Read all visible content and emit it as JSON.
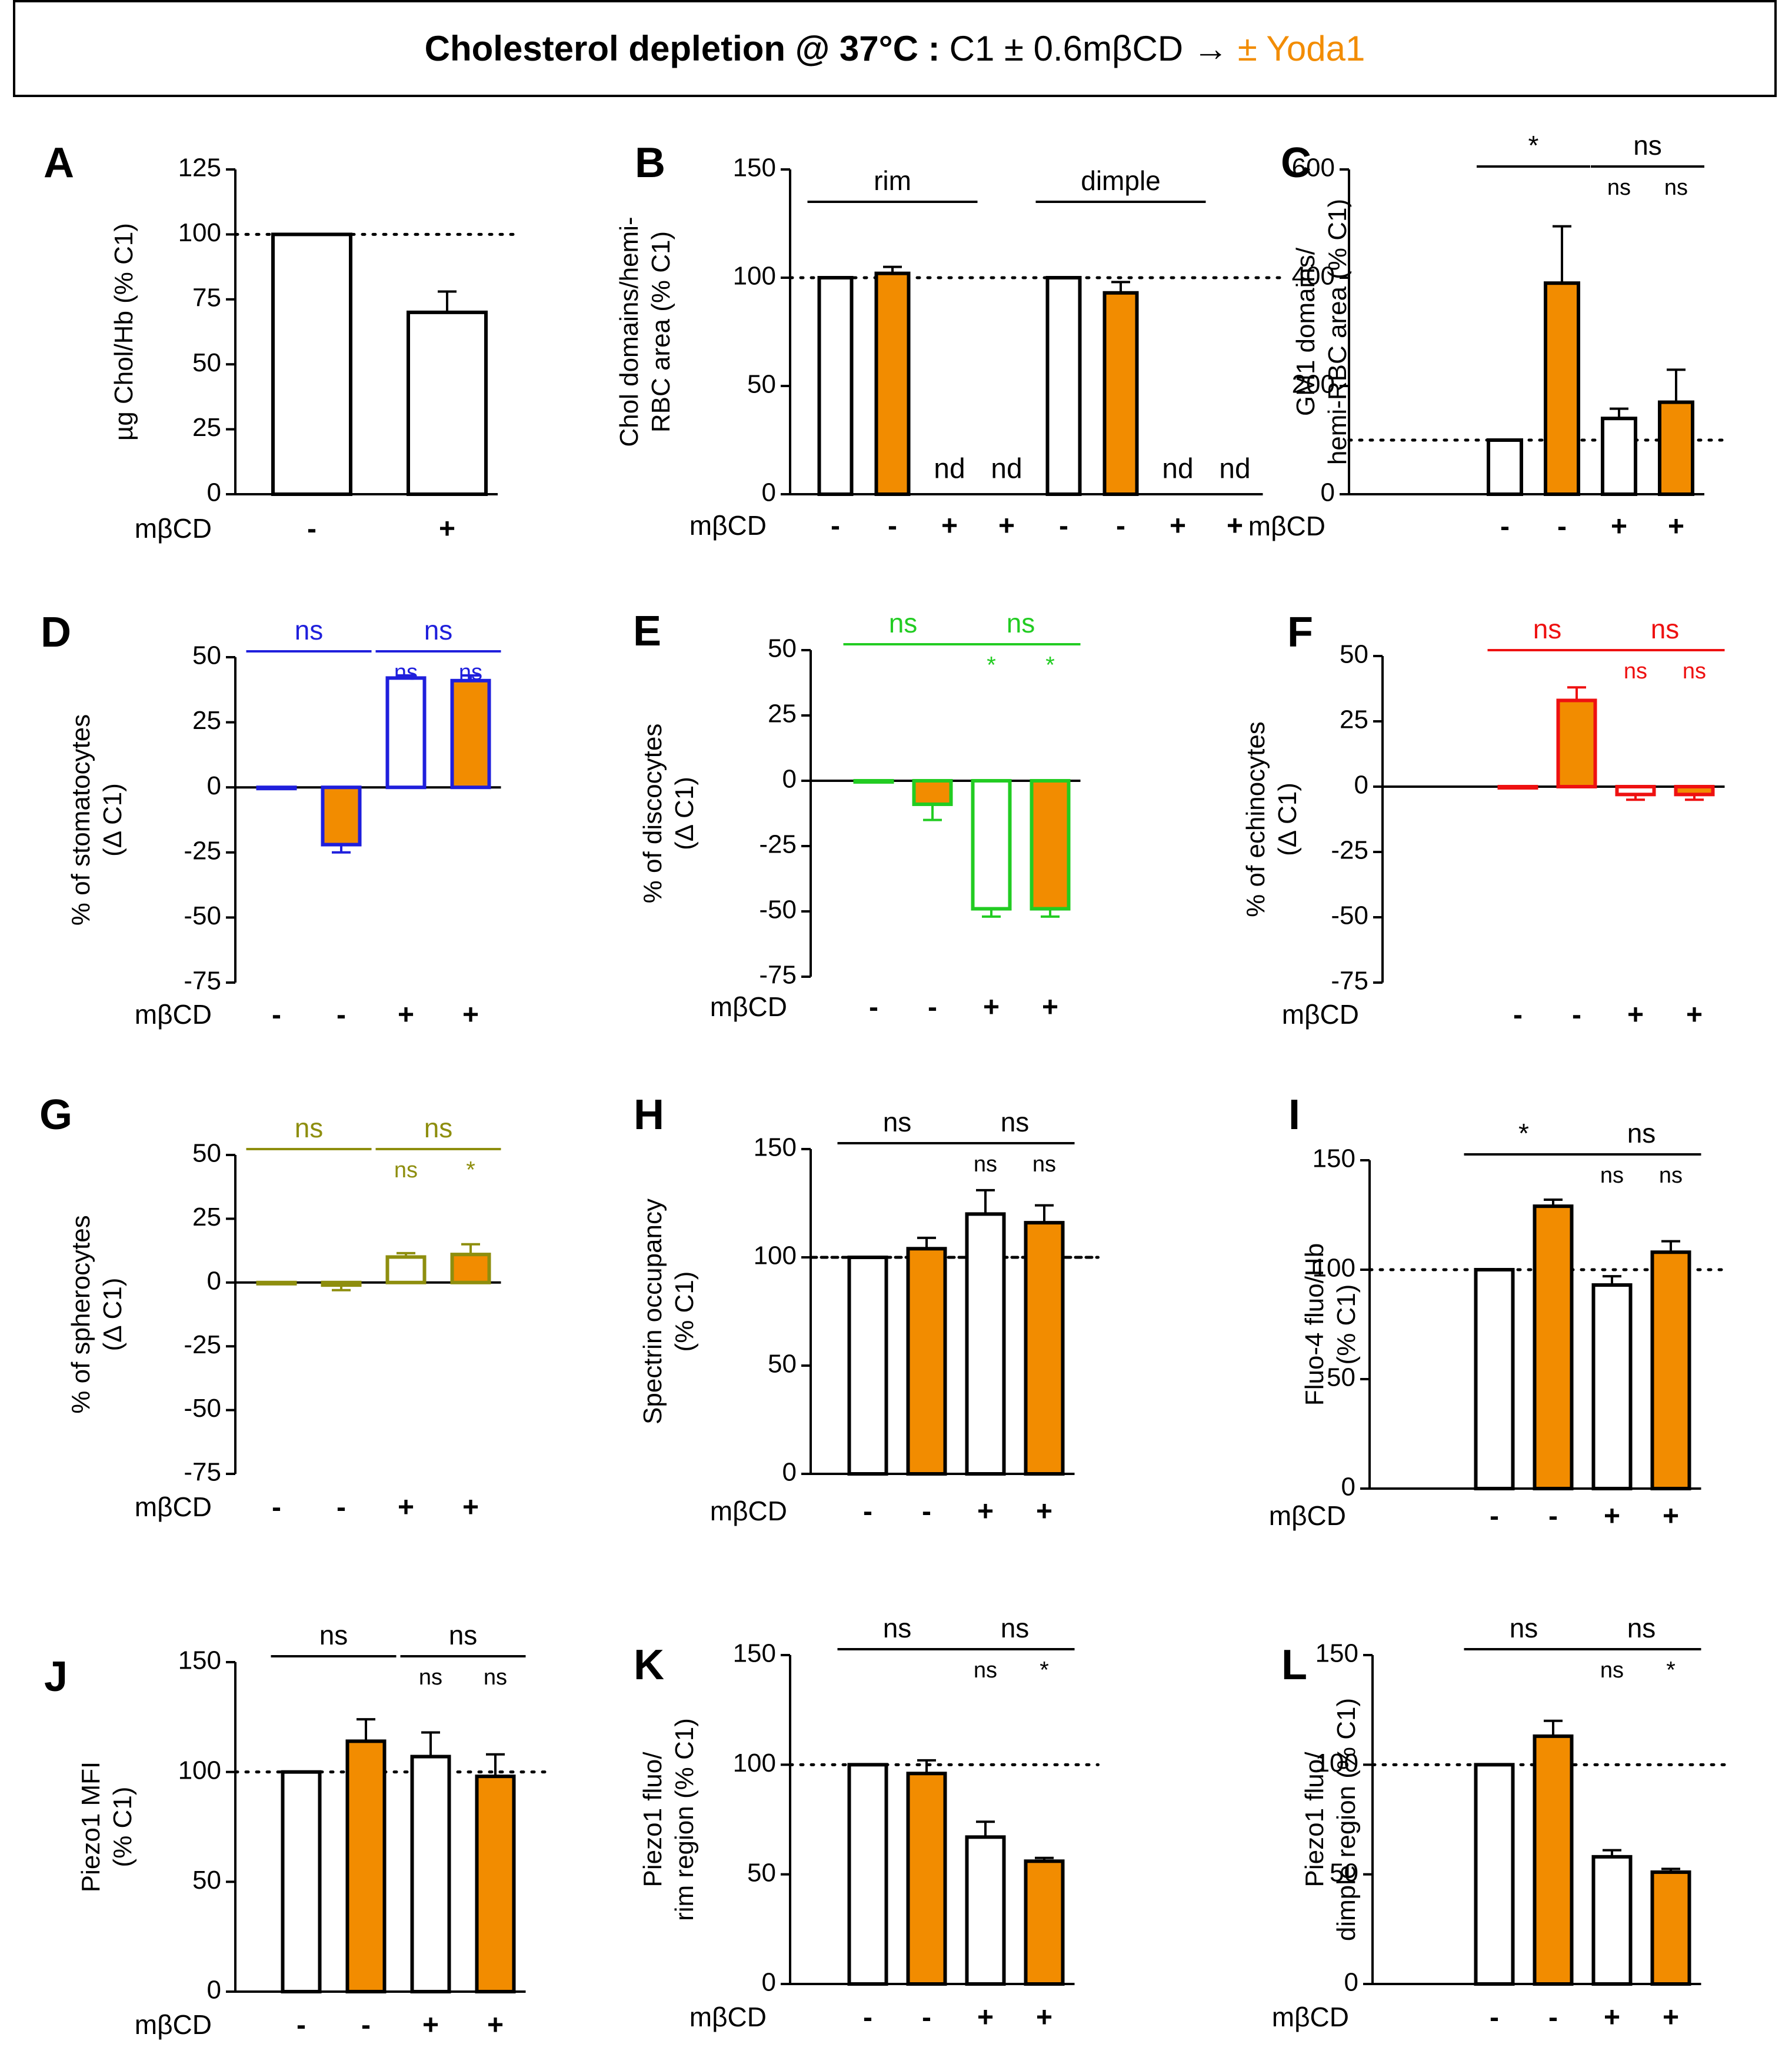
{
  "header": {
    "bold": "Cholesterol depletion @ 37°C :",
    "plain": "C1 ± 0.6mβCD →",
    "yoda": "± Yoda1",
    "yoda_color": "#f28c00"
  },
  "colors": {
    "orange": "#f28c00",
    "blue": "#1f1fdc",
    "green": "#22cc22",
    "red": "#ee1111",
    "olive": "#8e8e0e",
    "black": "#000000"
  },
  "treatment_label": "mβCD",
  "chart_data": [
    {
      "panel": "A",
      "type": "bar",
      "ylabel": "µg Chol/Hb (% C1)",
      "ylim": [
        0,
        125
      ],
      "ticks": [
        0,
        25,
        50,
        75,
        100,
        125
      ],
      "refline": 100,
      "categories": [
        "-",
        "+"
      ],
      "values": [
        100,
        70
      ],
      "errors": [
        0,
        8
      ],
      "fills": [
        "white",
        "white"
      ],
      "strokes": [
        "black",
        "black"
      ],
      "brackets": []
    },
    {
      "panel": "B",
      "type": "bar",
      "ylabel": "Chol domains/hemi-RBC area (% C1)",
      "ylabel_lines": [
        "Chol domains/hemi-",
        "RBC area (% C1)"
      ],
      "ylim": [
        0,
        150
      ],
      "ticks": [
        0,
        50,
        100,
        150
      ],
      "refline": 100,
      "categories": [
        "-",
        "-",
        "+",
        "+",
        "-",
        "-",
        "+",
        "+"
      ],
      "values": [
        100,
        102,
        null,
        null,
        100,
        93,
        null,
        null
      ],
      "errors": [
        0,
        3,
        0,
        0,
        0,
        5,
        0,
        0
      ],
      "fills": [
        "white",
        "orange",
        "white",
        "orange",
        "white",
        "orange",
        "white",
        "orange"
      ],
      "strokes": [
        "black",
        "black",
        "black",
        "black",
        "black",
        "black",
        "black",
        "black"
      ],
      "value_labels": [
        "",
        "",
        "nd",
        "nd",
        "",
        "",
        "nd",
        "nd"
      ],
      "brackets": [
        {
          "from": 0,
          "to": 2,
          "label": "rim"
        },
        {
          "from": 4,
          "to": 6,
          "label": "dimple"
        }
      ]
    },
    {
      "panel": "C",
      "type": "bar",
      "ylabel": "GM1 domains/ hemi-RBC area (% C1)",
      "ylabel_lines": [
        "GM1 domains/",
        "hemi-RBC area (% C1)"
      ],
      "ylim": [
        0,
        600
      ],
      "ticks": [
        0,
        200,
        400,
        600
      ],
      "refline": 100,
      "categories": [
        "-",
        "-",
        "+",
        "+"
      ],
      "values": [
        100,
        390,
        140,
        170
      ],
      "errors": [
        0,
        105,
        18,
        60
      ],
      "fills": [
        "white",
        "orange",
        "white",
        "orange"
      ],
      "strokes": [
        "black",
        "black",
        "black",
        "black"
      ],
      "brackets": [
        {
          "from": 0,
          "to": 1,
          "label": "*"
        },
        {
          "from": 2,
          "to": 3,
          "label": "ns"
        }
      ],
      "bar_labels": [
        "",
        "",
        "ns",
        "ns"
      ]
    },
    {
      "panel": "D",
      "type": "bar",
      "ylabel": "% of stomatocytes (Δ C1)",
      "ylabel_lines": [
        "% of stomatocytes",
        "(Δ C1)"
      ],
      "ylim": [
        -75,
        50
      ],
      "ticks": [
        -75,
        -50,
        -25,
        0,
        25,
        50
      ],
      "categories": [
        "-",
        "-",
        "+",
        "+"
      ],
      "values": [
        0,
        -22,
        42,
        41
      ],
      "errors": [
        0,
        3,
        1,
        2
      ],
      "fills": [
        "white",
        "orange",
        "white",
        "orange"
      ],
      "strokes": [
        "blue",
        "blue",
        "blue",
        "blue"
      ],
      "label_color": "blue",
      "brackets": [
        {
          "from": 0,
          "to": 1,
          "label": "ns"
        },
        {
          "from": 2,
          "to": 3,
          "label": "ns"
        }
      ],
      "bar_labels": [
        "",
        "",
        "ns",
        "ns"
      ]
    },
    {
      "panel": "E",
      "type": "bar",
      "ylabel": "% of discocytes (Δ C1)",
      "ylabel_lines": [
        "% of discocytes",
        "(Δ C1)"
      ],
      "ylim": [
        -75,
        50
      ],
      "ticks": [
        -75,
        -50,
        -25,
        0,
        25,
        50
      ],
      "categories": [
        "-",
        "-",
        "+",
        "+"
      ],
      "values": [
        0,
        -9,
        -49,
        -49
      ],
      "errors": [
        0,
        6,
        3,
        3
      ],
      "fills": [
        "white",
        "orange",
        "white",
        "orange"
      ],
      "strokes": [
        "green",
        "green",
        "green",
        "green"
      ],
      "label_color": "green",
      "brackets": [
        {
          "from": 0,
          "to": 1,
          "label": "ns"
        },
        {
          "from": 2,
          "to": 3,
          "label": "ns"
        }
      ],
      "bar_labels": [
        "",
        "",
        "*",
        "*"
      ]
    },
    {
      "panel": "F",
      "type": "bar",
      "ylabel": "% of echinocytes (Δ C1)",
      "ylabel_lines": [
        "% of echinocytes",
        "(Δ C1)"
      ],
      "ylim": [
        -75,
        50
      ],
      "ticks": [
        -75,
        -50,
        -25,
        0,
        25,
        50
      ],
      "categories": [
        "-",
        "-",
        "+",
        "+"
      ],
      "values": [
        0,
        33,
        -3,
        -3
      ],
      "errors": [
        0,
        5,
        2,
        2
      ],
      "fills": [
        "white",
        "orange",
        "white",
        "orange"
      ],
      "strokes": [
        "red",
        "red",
        "red",
        "red"
      ],
      "label_color": "red",
      "brackets": [
        {
          "from": 0,
          "to": 1,
          "label": "ns"
        },
        {
          "from": 2,
          "to": 3,
          "label": "ns"
        }
      ],
      "bar_labels": [
        "",
        "",
        "ns",
        "ns"
      ]
    },
    {
      "panel": "G",
      "type": "bar",
      "ylabel": "% of spherocytes (Δ C1)",
      "ylabel_lines": [
        "% of spherocytes",
        "(Δ C1)"
      ],
      "ylim": [
        -75,
        50
      ],
      "ticks": [
        -75,
        -50,
        -25,
        0,
        25,
        50
      ],
      "categories": [
        "-",
        "-",
        "+",
        "+"
      ],
      "values": [
        0,
        -1,
        10,
        11
      ],
      "errors": [
        0,
        2,
        1.5,
        4
      ],
      "fills": [
        "white",
        "orange",
        "white",
        "orange"
      ],
      "strokes": [
        "olive",
        "olive",
        "olive",
        "olive"
      ],
      "label_color": "olive",
      "brackets": [
        {
          "from": 0,
          "to": 1,
          "label": "ns"
        },
        {
          "from": 2,
          "to": 3,
          "label": "ns"
        }
      ],
      "bar_labels": [
        "",
        "",
        "ns",
        "*"
      ]
    },
    {
      "panel": "H",
      "type": "bar",
      "ylabel": "Spectrin occupancy (% C1)",
      "ylabel_lines": [
        "Spectrin occupancy",
        "(% C1)"
      ],
      "ylim": [
        0,
        150
      ],
      "ticks": [
        0,
        50,
        100,
        150
      ],
      "refline": 100,
      "refline_style": "dashed",
      "categories": [
        "-",
        "-",
        "+",
        "+"
      ],
      "values": [
        100,
        104,
        120,
        116
      ],
      "errors": [
        0,
        5,
        11,
        8
      ],
      "fills": [
        "white",
        "orange",
        "white",
        "orange"
      ],
      "strokes": [
        "black",
        "black",
        "black",
        "black"
      ],
      "brackets": [
        {
          "from": 0,
          "to": 1,
          "label": "ns"
        },
        {
          "from": 2,
          "to": 3,
          "label": "ns"
        }
      ],
      "bar_labels": [
        "",
        "",
        "ns",
        "ns"
      ]
    },
    {
      "panel": "I",
      "type": "bar",
      "ylabel": "Fluo-4 fluo/Hb (% C1)",
      "ylabel_lines": [
        "Fluo-4 fluo/Hb",
        "(% C1)"
      ],
      "ylim": [
        0,
        150
      ],
      "ticks": [
        0,
        50,
        100,
        150
      ],
      "refline": 100,
      "categories": [
        "-",
        "-",
        "+",
        "+"
      ],
      "values": [
        100,
        129,
        93,
        108
      ],
      "errors": [
        0,
        3,
        4,
        5
      ],
      "fills": [
        "white",
        "orange",
        "white",
        "orange"
      ],
      "strokes": [
        "black",
        "black",
        "black",
        "black"
      ],
      "brackets": [
        {
          "from": 0,
          "to": 1,
          "label": "*"
        },
        {
          "from": 2,
          "to": 3,
          "label": "ns"
        }
      ],
      "bar_labels": [
        "",
        "",
        "ns",
        "ns"
      ]
    },
    {
      "panel": "J",
      "type": "bar",
      "ylabel": "Piezo1 MFI (% C1)",
      "ylabel_lines": [
        "Piezo1 MFI",
        "(% C1)"
      ],
      "ylim": [
        0,
        150
      ],
      "ticks": [
        0,
        50,
        100,
        150
      ],
      "refline": 100,
      "categories": [
        "-",
        "-",
        "+",
        "+"
      ],
      "values": [
        100,
        114,
        107,
        98
      ],
      "errors": [
        0,
        10,
        11,
        10
      ],
      "fills": [
        "white",
        "orange",
        "white",
        "orange"
      ],
      "strokes": [
        "black",
        "black",
        "black",
        "black"
      ],
      "brackets": [
        {
          "from": 0,
          "to": 1,
          "label": "ns"
        },
        {
          "from": 2,
          "to": 3,
          "label": "ns"
        }
      ],
      "bar_labels": [
        "",
        "",
        "ns",
        "ns"
      ]
    },
    {
      "panel": "K",
      "type": "bar",
      "ylabel": "Piezo1 fluo/ rim region (% C1)",
      "ylabel_lines": [
        "Piezo1 fluo/",
        "rim region (% C1)"
      ],
      "ylim": [
        0,
        150
      ],
      "ticks": [
        0,
        50,
        100,
        150
      ],
      "refline": 100,
      "categories": [
        "-",
        "-",
        "+",
        "+"
      ],
      "values": [
        100,
        96,
        67,
        56
      ],
      "errors": [
        0,
        6,
        7,
        1.5
      ],
      "fills": [
        "white",
        "orange",
        "white",
        "orange"
      ],
      "strokes": [
        "black",
        "black",
        "black",
        "black"
      ],
      "brackets": [
        {
          "from": 0,
          "to": 1,
          "label": "ns"
        },
        {
          "from": 2,
          "to": 3,
          "label": "ns"
        }
      ],
      "bar_labels": [
        "",
        "",
        "ns",
        "*"
      ]
    },
    {
      "panel": "L",
      "type": "bar",
      "ylabel": "Piezo1 fluo/ dimple region (% C1)",
      "ylabel_lines": [
        "Piezo1 fluo/",
        "dimple region (% C1)"
      ],
      "ylim": [
        0,
        150
      ],
      "ticks": [
        0,
        50,
        100,
        150
      ],
      "refline": 100,
      "categories": [
        "-",
        "-",
        "+",
        "+"
      ],
      "values": [
        100,
        113,
        58,
        51
      ],
      "errors": [
        0,
        7,
        3,
        1.5
      ],
      "fills": [
        "white",
        "orange",
        "white",
        "orange"
      ],
      "strokes": [
        "black",
        "black",
        "black",
        "black"
      ],
      "brackets": [
        {
          "from": 0,
          "to": 1,
          "label": "ns"
        },
        {
          "from": 2,
          "to": 3,
          "label": "ns"
        }
      ],
      "bar_labels": [
        "",
        "",
        "ns",
        "*"
      ]
    }
  ]
}
